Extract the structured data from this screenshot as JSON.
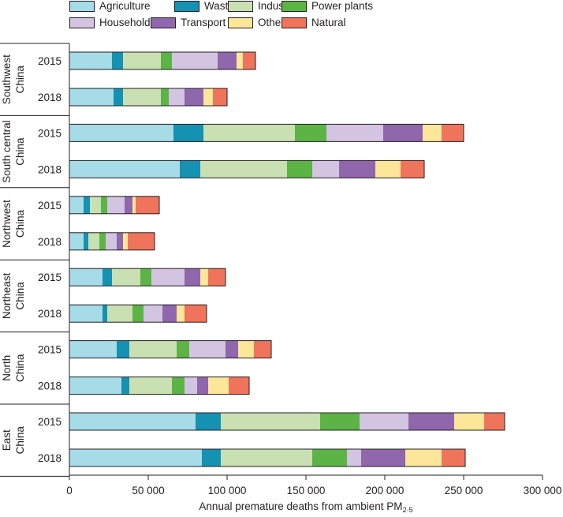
{
  "legend": {
    "items": [
      {
        "label": "Agriculture",
        "color": "#a6dbe8"
      },
      {
        "label": "Waste",
        "color": "#1592b2"
      },
      {
        "label": "Industry",
        "color": "#c9e0b3"
      },
      {
        "label": "Power plants",
        "color": "#5cb446"
      },
      {
        "label": "Households",
        "color": "#d3c4e2"
      },
      {
        "label": "Transport",
        "color": "#9066ac"
      },
      {
        "label": "Other",
        "color": "#fbe69a"
      },
      {
        "label": "Natural",
        "color": "#f0745b"
      }
    ]
  },
  "chart_data": {
    "type": "bar",
    "orientation": "horizontal",
    "stacked": true,
    "xlabel": "Annual premature deaths from ambient PM",
    "xlabel_subscript": "2·5",
    "xlim": [
      0,
      300000
    ],
    "xticks": [
      0,
      50000,
      100000,
      150000,
      200000,
      250000,
      300000
    ],
    "xtick_labels": [
      "0",
      "50 000",
      "100 000",
      "150 000",
      "200 000",
      "250 000",
      "300 000"
    ],
    "series_names": [
      "Agriculture",
      "Waste",
      "Industry",
      "Power plants",
      "Households",
      "Transport",
      "Other",
      "Natural"
    ],
    "groups": [
      {
        "region": [
          "Southwest",
          "China"
        ],
        "bars": [
          {
            "year": "2015",
            "values": [
              27000,
              7000,
              24000,
              7000,
              29000,
              12000,
              4000,
              8000
            ]
          },
          {
            "year": "2018",
            "values": [
              28000,
              6000,
              24000,
              5000,
              10000,
              12000,
              6000,
              9000
            ]
          }
        ]
      },
      {
        "region": [
          "South central",
          "China"
        ],
        "bars": [
          {
            "year": "2015",
            "values": [
              66000,
              19000,
              58000,
              20000,
              36000,
              25000,
              12000,
              14000
            ]
          },
          {
            "year": "2018",
            "values": [
              70000,
              13000,
              55000,
              16000,
              17000,
              23000,
              16000,
              15000
            ]
          }
        ]
      },
      {
        "region": [
          "Northwest",
          "China"
        ],
        "bars": [
          {
            "year": "2015",
            "values": [
              9000,
              4000,
              7000,
              4000,
              11000,
              5000,
              2000,
              15000
            ]
          },
          {
            "year": "2018",
            "values": [
              9000,
              3000,
              7000,
              4000,
              7000,
              4000,
              3000,
              17000
            ]
          }
        ]
      },
      {
        "region": [
          "Northeast",
          "China"
        ],
        "bars": [
          {
            "year": "2015",
            "values": [
              21000,
              6000,
              18000,
              7000,
              21000,
              10000,
              5000,
              11000
            ]
          },
          {
            "year": "2018",
            "values": [
              21000,
              3000,
              16000,
              7000,
              12000,
              9000,
              5000,
              14000
            ]
          }
        ]
      },
      {
        "region": [
          "North",
          "China"
        ],
        "bars": [
          {
            "year": "2015",
            "values": [
              30000,
              8000,
              30000,
              8000,
              23000,
              8000,
              10000,
              11000
            ]
          },
          {
            "year": "2018",
            "values": [
              33000,
              5000,
              27000,
              8000,
              8000,
              7000,
              13000,
              13000
            ]
          }
        ]
      },
      {
        "region": [
          "East",
          "China"
        ],
        "bars": [
          {
            "year": "2015",
            "values": [
              80000,
              16000,
              63000,
              25000,
              31000,
              29000,
              19000,
              13000
            ]
          },
          {
            "year": "2018",
            "values": [
              84000,
              12000,
              58000,
              22000,
              9000,
              28000,
              23000,
              15000
            ]
          }
        ]
      }
    ]
  }
}
